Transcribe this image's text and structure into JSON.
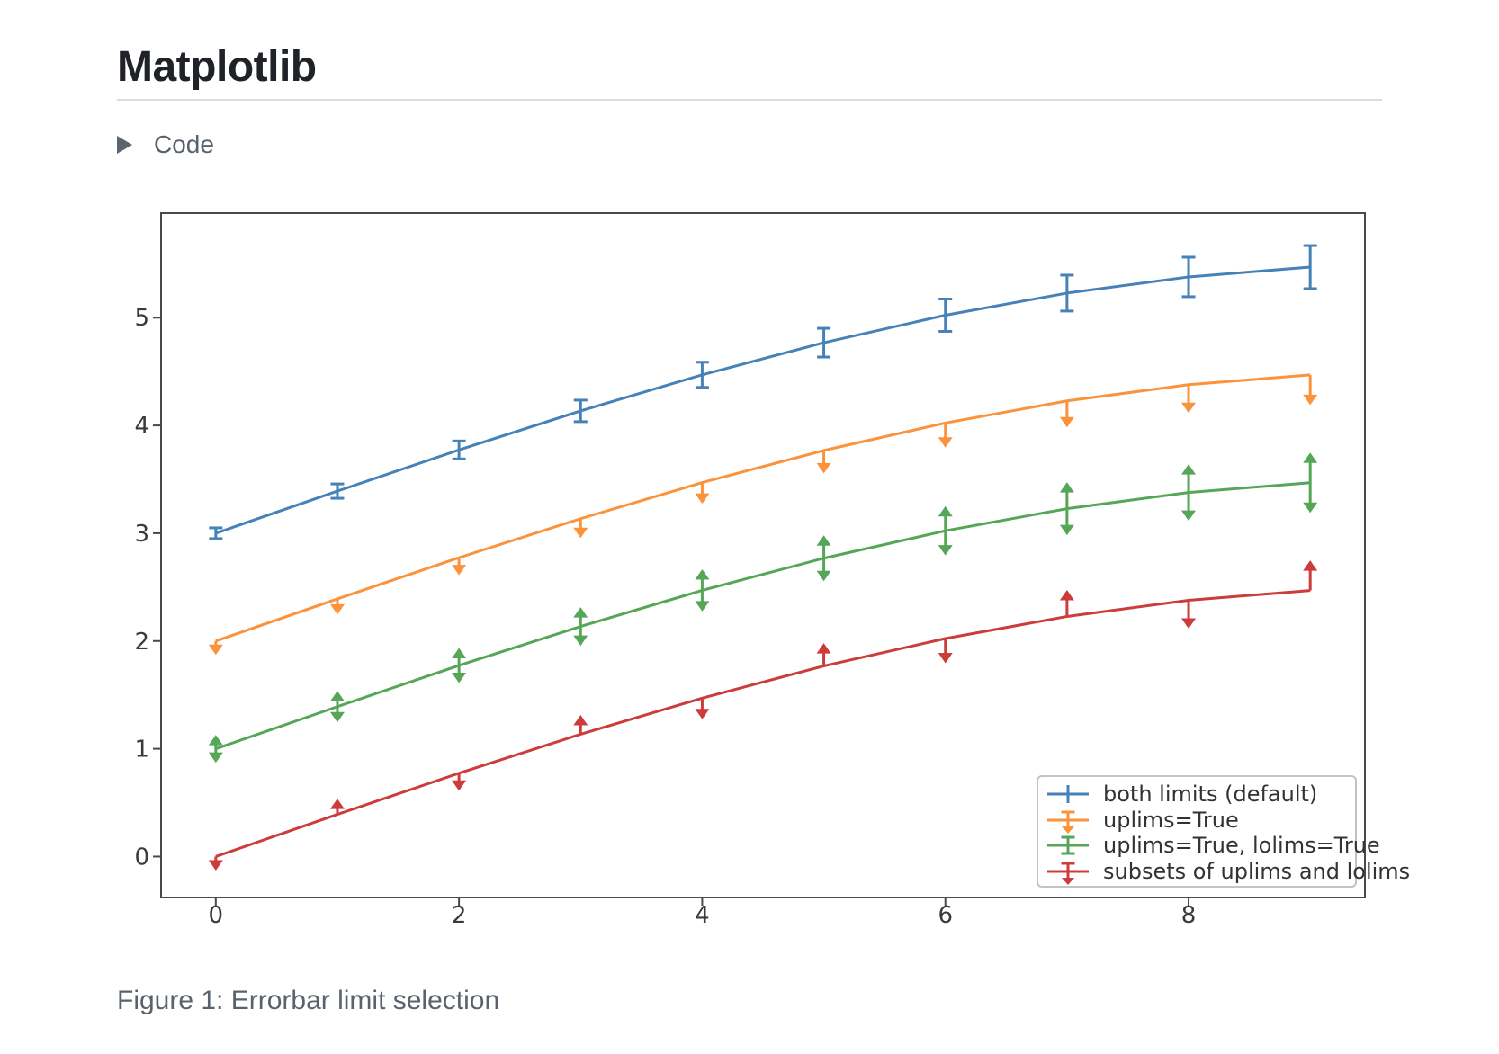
{
  "header": {
    "title": "Matplotlib"
  },
  "code_section": {
    "label": "Code",
    "disclosure_icon": "triangle-right-icon",
    "expanded": false
  },
  "caption": "Figure 1: Errorbar limit selection",
  "chart_data": {
    "type": "line",
    "title": "",
    "xlabel": "",
    "ylabel": "",
    "grid": false,
    "legend_position": "lower right",
    "x": [
      0,
      1,
      2,
      3,
      4,
      5,
      6,
      7,
      8,
      9
    ],
    "xlim": [
      -0.45,
      9.45
    ],
    "ylim": [
      -0.38,
      5.97
    ],
    "xticks": [
      0,
      2,
      4,
      6,
      8
    ],
    "yticks": [
      0,
      1,
      2,
      3,
      4,
      5
    ],
    "yerr": [
      0.05,
      0.0667,
      0.0833,
      0.1,
      0.1167,
      0.1333,
      0.15,
      0.1667,
      0.1833,
      0.2
    ],
    "axis_color": "#4a4a4a",
    "series": [
      {
        "name": "both limits (default)",
        "color": "#4682b8",
        "limits": "both",
        "y": [
          3.0,
          3.391,
          3.773,
          4.135,
          4.47,
          4.768,
          5.023,
          5.228,
          5.378,
          5.469
        ]
      },
      {
        "name": "uplims=True",
        "color": "#fb923c",
        "limits": "uplims",
        "y": [
          2.0,
          2.391,
          2.773,
          3.135,
          3.47,
          3.768,
          4.023,
          4.228,
          4.378,
          4.469
        ]
      },
      {
        "name": "uplims=True, lolims=True",
        "color": "#55a757",
        "limits": "uplims+lolims",
        "y": [
          1.0,
          1.391,
          1.773,
          2.135,
          2.47,
          2.768,
          3.023,
          3.228,
          3.378,
          3.469
        ]
      },
      {
        "name": "subsets of uplims and lolims",
        "color": "#cc3c3a",
        "limits": "alternating",
        "uplims_points": [
          0,
          2,
          4,
          6,
          8
        ],
        "lolims_points": [
          1,
          3,
          5,
          7,
          9
        ],
        "y": [
          0.0,
          0.391,
          0.773,
          1.135,
          1.47,
          1.768,
          2.023,
          2.228,
          2.378,
          2.469
        ]
      }
    ]
  }
}
